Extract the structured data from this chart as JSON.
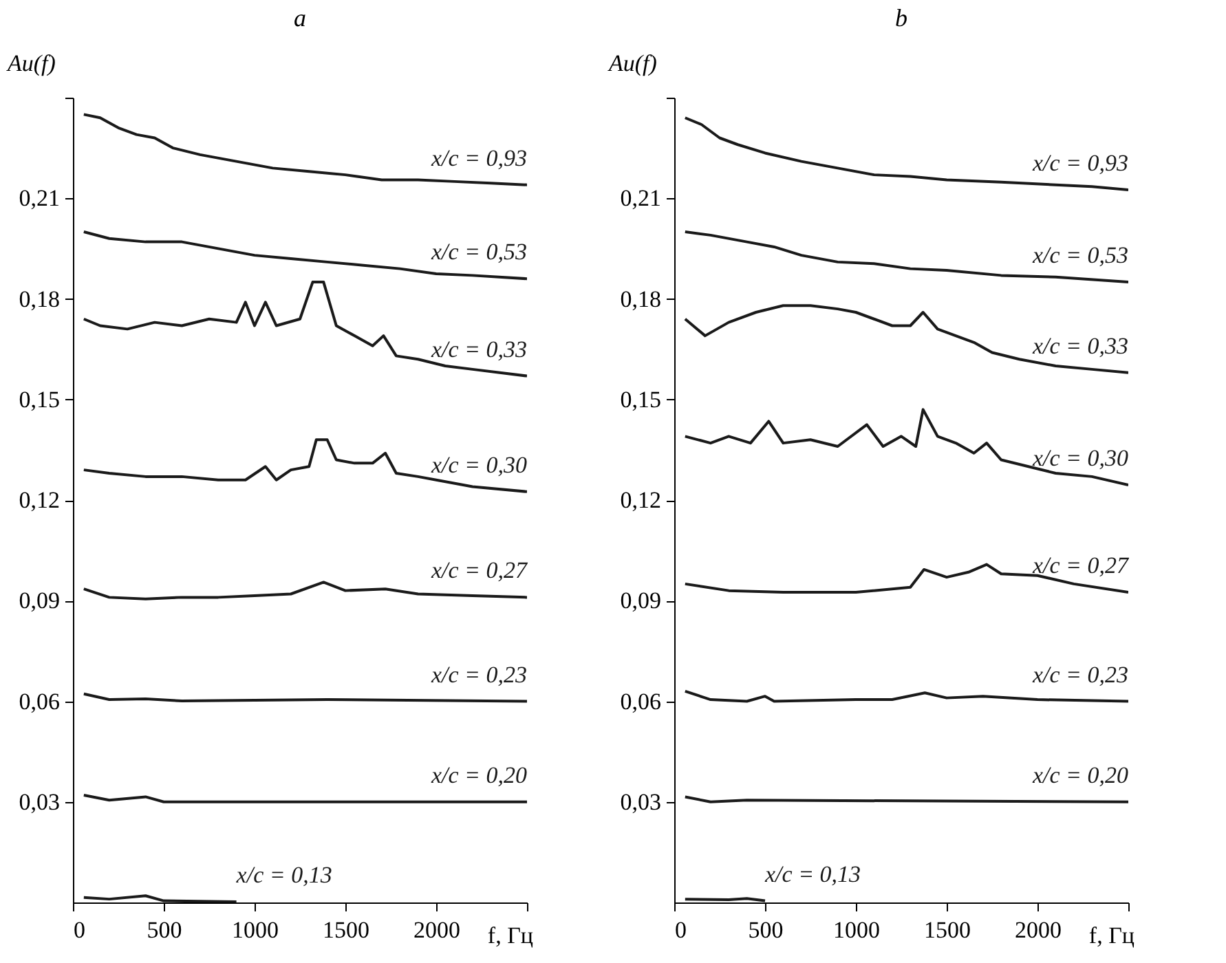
{
  "chart_data": [
    {
      "type": "line",
      "title": "a",
      "xlabel": "f, Гц",
      "ylabel": "Au(f)",
      "xlim": [
        0,
        2500
      ],
      "ylim": [
        0,
        0.24
      ],
      "xticks": [
        0,
        500,
        1000,
        1500,
        2000,
        {
          "value": 2500,
          "label": null
        }
      ],
      "yticks": [
        {
          "value": 0.03,
          "label": "0,03"
        },
        {
          "value": 0.06,
          "label": "0,06"
        },
        {
          "value": 0.09,
          "label": "0,09"
        },
        {
          "value": 0.12,
          "label": "0,12"
        },
        {
          "value": 0.15,
          "label": "0,15"
        },
        {
          "value": 0.18,
          "label": "0,18"
        },
        {
          "value": 0.21,
          "label": "0,21"
        },
        {
          "value": 0.24,
          "label": null
        }
      ],
      "series": [
        {
          "name": "x/c = 0,93",
          "color": "#1a1a1a",
          "x": [
            60,
            150,
            250,
            350,
            450,
            550,
            700,
            900,
            1100,
            1300,
            1500,
            1700,
            1900,
            2100,
            2300,
            2500
          ],
          "values": [
            0.235,
            0.234,
            0.231,
            0.229,
            0.228,
            0.225,
            0.223,
            0.221,
            0.219,
            0.218,
            0.217,
            0.2155,
            0.2155,
            0.215,
            0.2145,
            0.214
          ]
        },
        {
          "name": "x/c = 0,53",
          "color": "#1a1a1a",
          "x": [
            60,
            200,
            400,
            600,
            800,
            1000,
            1200,
            1400,
            1600,
            1800,
            2000,
            2200,
            2500
          ],
          "values": [
            0.2,
            0.198,
            0.197,
            0.197,
            0.195,
            0.193,
            0.192,
            0.191,
            0.19,
            0.189,
            0.1875,
            0.187,
            0.186
          ]
        },
        {
          "name": "x/c = 0,33",
          "color": "#1a1a1a",
          "x": [
            60,
            150,
            300,
            450,
            600,
            750,
            900,
            950,
            1000,
            1060,
            1120,
            1250,
            1320,
            1380,
            1450,
            1550,
            1650,
            1710,
            1780,
            1900,
            2050,
            2200,
            2350,
            2500
          ],
          "values": [
            0.174,
            0.172,
            0.171,
            0.173,
            0.172,
            0.174,
            0.173,
            0.179,
            0.172,
            0.179,
            0.172,
            0.174,
            0.185,
            0.185,
            0.172,
            0.169,
            0.166,
            0.169,
            0.163,
            0.162,
            0.16,
            0.159,
            0.158,
            0.157
          ]
        },
        {
          "name": "x/c = 0,30",
          "color": "#1a1a1a",
          "x": [
            60,
            200,
            400,
            600,
            800,
            950,
            1060,
            1120,
            1200,
            1300,
            1340,
            1400,
            1450,
            1550,
            1650,
            1720,
            1780,
            1900,
            2000,
            2200,
            2500
          ],
          "values": [
            0.129,
            0.128,
            0.127,
            0.127,
            0.126,
            0.126,
            0.13,
            0.126,
            0.129,
            0.13,
            0.138,
            0.138,
            0.132,
            0.131,
            0.131,
            0.134,
            0.128,
            0.127,
            0.126,
            0.124,
            0.1225
          ]
        },
        {
          "name": "x/c = 0,27",
          "color": "#1a1a1a",
          "x": [
            60,
            200,
            400,
            600,
            800,
            1000,
            1200,
            1380,
            1500,
            1720,
            1900,
            2200,
            2500
          ],
          "values": [
            0.0935,
            0.091,
            0.0905,
            0.091,
            0.091,
            0.0915,
            0.092,
            0.0955,
            0.093,
            0.0935,
            0.092,
            0.0915,
            0.091
          ]
        },
        {
          "name": "x/c = 0,23",
          "color": "#1a1a1a",
          "x": [
            60,
            200,
            400,
            600,
            1400,
            2500
          ],
          "values": [
            0.0622,
            0.0605,
            0.0607,
            0.0601,
            0.0605,
            0.06
          ]
        },
        {
          "name": "x/c = 0,20",
          "color": "#1a1a1a",
          "x": [
            60,
            200,
            400,
            500,
            2500
          ],
          "values": [
            0.032,
            0.0305,
            0.0315,
            0.03,
            0.03
          ]
        },
        {
          "name": "x/c = 0,13",
          "color": "#1a1a1a",
          "x": [
            60,
            200,
            400,
            500,
            900
          ],
          "values": [
            0.0015,
            0.001,
            0.002,
            0.0005,
            0.0002
          ]
        }
      ]
    },
    {
      "type": "line",
      "title": "b",
      "xlabel": "f, Гц",
      "ylabel": "Au(f)",
      "xlim": [
        0,
        2500
      ],
      "ylim": [
        0,
        0.24
      ],
      "xticks": [
        0,
        500,
        1000,
        1500,
        2000,
        {
          "value": 2500,
          "label": null
        }
      ],
      "yticks": [
        {
          "value": 0.03,
          "label": "0,03"
        },
        {
          "value": 0.06,
          "label": "0,06"
        },
        {
          "value": 0.09,
          "label": "0,09"
        },
        {
          "value": 0.12,
          "label": "0,12"
        },
        {
          "value": 0.15,
          "label": "0,15"
        },
        {
          "value": 0.18,
          "label": "0,18"
        },
        {
          "value": 0.21,
          "label": "0,21"
        },
        {
          "value": 0.24,
          "label": null
        }
      ],
      "series": [
        {
          "name": "x/c = 0,93",
          "color": "#1a1a1a",
          "x": [
            60,
            150,
            250,
            350,
            500,
            700,
            900,
            1100,
            1300,
            1500,
            1800,
            2100,
            2300,
            2500
          ],
          "values": [
            0.234,
            0.232,
            0.228,
            0.226,
            0.2235,
            0.221,
            0.219,
            0.217,
            0.2165,
            0.2155,
            0.2148,
            0.214,
            0.2135,
            0.2125
          ]
        },
        {
          "name": "x/c = 0,53",
          "color": "#1a1a1a",
          "x": [
            60,
            200,
            400,
            550,
            700,
            900,
            1100,
            1300,
            1500,
            1800,
            2100,
            2500
          ],
          "values": [
            0.2,
            0.199,
            0.197,
            0.1955,
            0.193,
            0.191,
            0.1905,
            0.189,
            0.1885,
            0.187,
            0.1865,
            0.185
          ]
        },
        {
          "name": "x/c = 0,33",
          "color": "#1a1a1a",
          "x": [
            60,
            170,
            300,
            450,
            600,
            750,
            900,
            1000,
            1100,
            1200,
            1300,
            1370,
            1450,
            1550,
            1650,
            1750,
            1900,
            2100,
            2300,
            2500
          ],
          "values": [
            0.174,
            0.169,
            0.173,
            0.176,
            0.178,
            0.178,
            0.177,
            0.176,
            0.174,
            0.172,
            0.172,
            0.176,
            0.171,
            0.169,
            0.167,
            0.164,
            0.162,
            0.16,
            0.159,
            0.158
          ]
        },
        {
          "name": "x/c = 0,30",
          "color": "#1a1a1a",
          "x": [
            60,
            200,
            300,
            420,
            520,
            600,
            750,
            900,
            1060,
            1150,
            1250,
            1330,
            1370,
            1450,
            1550,
            1650,
            1720,
            1800,
            1950,
            2100,
            2300,
            2500
          ],
          "values": [
            0.139,
            0.137,
            0.139,
            0.137,
            0.1435,
            0.137,
            0.138,
            0.136,
            0.1425,
            0.136,
            0.139,
            0.136,
            0.147,
            0.139,
            0.137,
            0.134,
            0.137,
            0.132,
            0.13,
            0.128,
            0.127,
            0.1245
          ]
        },
        {
          "name": "x/c = 0,27",
          "color": "#1a1a1a",
          "x": [
            60,
            300,
            600,
            1000,
            1300,
            1375,
            1500,
            1620,
            1720,
            1800,
            2000,
            2200,
            2500
          ],
          "values": [
            0.095,
            0.093,
            0.0925,
            0.0925,
            0.094,
            0.0993,
            0.097,
            0.0985,
            0.1008,
            0.098,
            0.0975,
            0.095,
            0.0925
          ]
        },
        {
          "name": "x/c = 0,23",
          "color": "#1a1a1a",
          "x": [
            60,
            200,
            400,
            500,
            550,
            1000,
            1200,
            1380,
            1500,
            1700,
            2000,
            2500
          ],
          "values": [
            0.063,
            0.0605,
            0.06,
            0.0615,
            0.06,
            0.0605,
            0.0605,
            0.0625,
            0.061,
            0.0615,
            0.0605,
            0.06
          ]
        },
        {
          "name": "x/c = 0,20",
          "color": "#1a1a1a",
          "x": [
            60,
            200,
            400,
            2500
          ],
          "values": [
            0.0315,
            0.03,
            0.0305,
            0.03
          ]
        },
        {
          "name": "x/c = 0,13",
          "color": "#1a1a1a",
          "x": [
            60,
            300,
            400,
            500
          ],
          "values": [
            0.001,
            0.0008,
            0.0012,
            0.0005
          ]
        }
      ]
    }
  ]
}
